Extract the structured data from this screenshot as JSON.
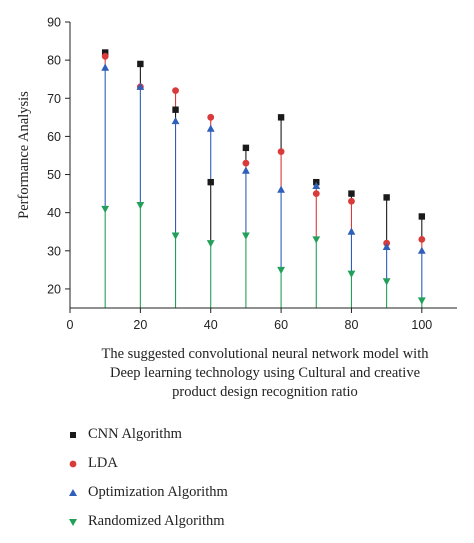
{
  "chart_data": {
    "type": "scatter",
    "ylabel": "Performance Analysis",
    "xlabel_lines": [
      "The suggested convolutional neural network model with",
      "Deep learning technology using Cultural and creative",
      "product design recognition ratio"
    ],
    "xlim": [
      0,
      110
    ],
    "ylim": [
      15,
      90
    ],
    "xticks": [
      0,
      20,
      40,
      60,
      80,
      100
    ],
    "yticks": [
      20,
      30,
      40,
      50,
      60,
      70,
      80,
      90
    ],
    "x": [
      10,
      20,
      30,
      40,
      50,
      60,
      70,
      80,
      90,
      100
    ],
    "series": [
      {
        "name": "CNN Algorithm",
        "marker": "square",
        "color": "#1a1a1a",
        "values": [
          82,
          79,
          67,
          48,
          57,
          65,
          48,
          45,
          44,
          39
        ]
      },
      {
        "name": "LDA",
        "marker": "circle",
        "color": "#d93a3a",
        "values": [
          81,
          73,
          72,
          65,
          53,
          56,
          45,
          43,
          32,
          33
        ]
      },
      {
        "name": "Optimization Algorithm",
        "marker": "triangle-up",
        "color": "#2f5fb8",
        "values": [
          78,
          73,
          64,
          62,
          51,
          46,
          47,
          35,
          31,
          30
        ]
      },
      {
        "name": "Randomized Algorithm",
        "marker": "triangle-down",
        "color": "#22a05a",
        "values": [
          41,
          42,
          34,
          32,
          34,
          25,
          33,
          24,
          22,
          17
        ]
      }
    ]
  }
}
